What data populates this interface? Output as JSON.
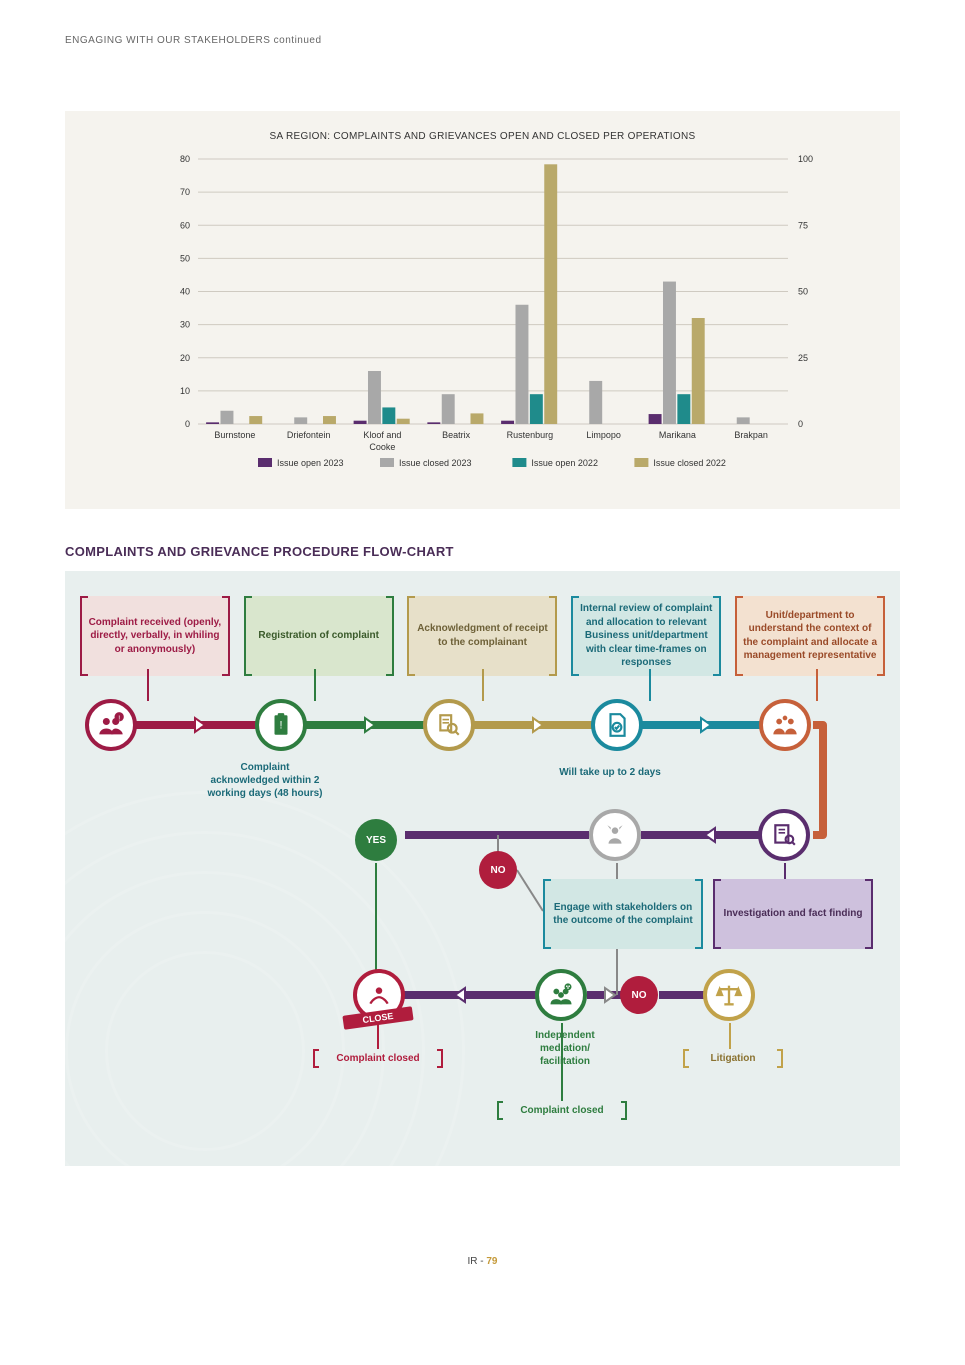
{
  "header": {
    "crumb": "ENGAGING WITH OUR STAKEHOLDERS continued"
  },
  "chart": {
    "type": "grouped-bar-dual-axis",
    "title": "SA REGION: COMPLAINTS AND GRIEVANCES OPEN AND CLOSED PER OPERATIONS",
    "background_color": "#f5f3ee",
    "plot_bg": "#f5f3ee",
    "grid_color": "#cfcac1",
    "text_color": "#333333",
    "axis_fontsize": 9,
    "left_axis": {
      "min": 0,
      "max": 80,
      "ticks": [
        0,
        10,
        20,
        30,
        40,
        50,
        60,
        70,
        80
      ]
    },
    "right_axis": {
      "min": 0,
      "max": 100,
      "ticks": [
        0,
        25,
        50,
        75,
        100
      ]
    },
    "categories": [
      "Burnstone",
      "Driefontein",
      "Kloof and Cooke",
      "Beatrix",
      "Rustenburg",
      "Limpopo",
      "Marikana",
      "Brakpan"
    ],
    "series": [
      {
        "name": "Issue open 2023",
        "axis": "left",
        "color": "#5a2d6e",
        "values": [
          0.5,
          0,
          1,
          0.5,
          1,
          0,
          3,
          0
        ]
      },
      {
        "name": "Issue closed 2023",
        "axis": "left",
        "color": "#a8a8a8",
        "values": [
          4,
          2,
          16,
          9,
          36,
          13,
          43,
          2
        ]
      },
      {
        "name": "Issue open 2022",
        "axis": "left",
        "color": "#1f8b8b",
        "values": [
          0,
          0,
          5,
          0,
          9,
          0,
          9,
          0
        ]
      },
      {
        "name": "Issue closed 2022",
        "axis": "right",
        "color": "#b9a96a",
        "values": [
          3,
          3,
          2,
          4,
          98,
          0,
          40,
          0
        ]
      }
    ],
    "bar_group_width": 0.78,
    "legend_swatch_w": 14,
    "legend_fontsize": 9
  },
  "flow": {
    "title": "COMPLAINTS AND GRIEVANCE PROCEDURE FLOW-CHART",
    "panel_bg": "#e8efee",
    "colors": {
      "maroon": "#9d1b45",
      "green": "#2e7d3f",
      "olive": "#b39a4c",
      "teal": "#1b8a9e",
      "orange": "#c6603a",
      "purple": "#5a2d6e",
      "red": "#b01d3d",
      "gold": "#c1a24a",
      "lav_bg": "#cec1dd"
    },
    "boxes_row1": [
      {
        "text": "Complaint received (openly, directly, verbally, in whiling or anonymously)",
        "border": "#9d1b45",
        "bg": "#f1e0de",
        "fg": "#9d1b45"
      },
      {
        "text": "Registration of complaint",
        "border": "#2e7d3f",
        "bg": "#d9e6cd",
        "fg": "#3a5a2a"
      },
      {
        "text": "Acknowledgment of receipt to the complainant",
        "border": "#b39a4c",
        "bg": "#e7e0c9",
        "fg": "#6e6138"
      },
      {
        "text": "Internal review of complaint and allocation to relevant Business unit/department with clear time-frames on responses",
        "border": "#1b8a9e",
        "bg": "#d2e7e4",
        "fg": "#1b6a78"
      },
      {
        "text": "Unit/department to understand the context of the complaint and allocate a management representative",
        "border": "#c6603a",
        "bg": "#f3e1d0",
        "fg": "#9a4a28"
      }
    ],
    "labels": {
      "ack": "Complaint acknowledged within 2 working days (48 hours)",
      "twodays": "Will take up to 2 days"
    },
    "yes": "YES",
    "no": "NO",
    "close_banner": "CLOSE",
    "engage_box": {
      "text": "Engage with stakeholders on the outcome of the complaint",
      "border": "#1b8a9e",
      "bg": "#d2e7e4",
      "fg": "#1b6a78"
    },
    "invest_box": {
      "text": "Investigation and fact finding",
      "border": "#5a2d6e",
      "bg": "#cec1dd",
      "fg": "#4a2d57"
    },
    "complaint_closed1": {
      "text": "Complaint closed",
      "border": "#b01d3d",
      "fg": "#b01d3d"
    },
    "mediation_label": "Independent mediation/ facilitation",
    "litigation": {
      "text": "Litigation",
      "border": "#c1a24a",
      "fg": "#8a7230"
    },
    "complaint_closed2": {
      "text": "Complaint closed",
      "border": "#2e7d3f",
      "fg": "#2e7d3f"
    }
  },
  "footer": {
    "prefix": "IR - ",
    "page": "79"
  }
}
